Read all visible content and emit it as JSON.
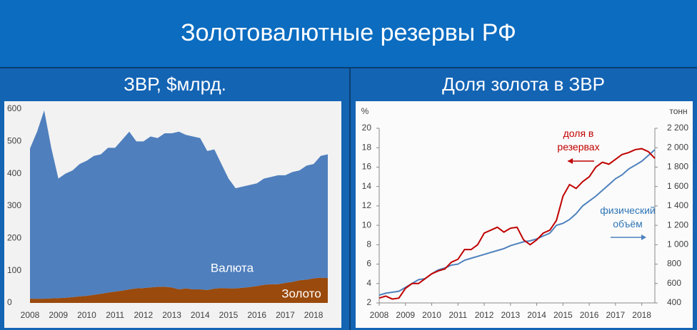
{
  "title": "Золотовалютные резервы РФ",
  "chart_data": [
    {
      "type": "area",
      "stacked": true,
      "title": "ЗВР, $млрд.",
      "x": [
        2008,
        2008.25,
        2008.5,
        2008.75,
        2009,
        2009.25,
        2009.5,
        2009.75,
        2010,
        2010.25,
        2010.5,
        2010.75,
        2011,
        2011.25,
        2011.5,
        2011.75,
        2012,
        2012.25,
        2012.5,
        2012.75,
        2013,
        2013.25,
        2013.5,
        2013.75,
        2014,
        2014.25,
        2014.5,
        2014.75,
        2015,
        2015.25,
        2015.5,
        2015.75,
        2016,
        2016.25,
        2016.5,
        2016.75,
        2017,
        2017.25,
        2017.5,
        2017.75,
        2018,
        2018.25,
        2018.5
      ],
      "series": [
        {
          "name": "Золото",
          "color": "#9a4a0c",
          "values": [
            13,
            13,
            13,
            14,
            15,
            16,
            18,
            20,
            22,
            25,
            28,
            32,
            35,
            38,
            42,
            45,
            46,
            48,
            50,
            50,
            48,
            42,
            45,
            42,
            42,
            40,
            44,
            46,
            45,
            45,
            47,
            49,
            52,
            56,
            58,
            58,
            62,
            65,
            70,
            72,
            76,
            78,
            77
          ]
        },
        {
          "name": "Валюта",
          "color": "#4f7fbd",
          "values": [
            465,
            517,
            583,
            466,
            370,
            384,
            392,
            410,
            418,
            430,
            432,
            448,
            445,
            467,
            488,
            455,
            454,
            467,
            460,
            475,
            477,
            488,
            475,
            473,
            468,
            430,
            431,
            384,
            340,
            310,
            313,
            316,
            318,
            329,
            332,
            337,
            333,
            340,
            340,
            353,
            354,
            377,
            383
          ]
        }
      ],
      "xlim": [
        2008,
        2018.5
      ],
      "xticks": [
        2008,
        2009,
        2010,
        2011,
        2012,
        2013,
        2014,
        2015,
        2016,
        2017,
        2018
      ],
      "ylim": [
        0,
        600
      ],
      "yticks": [
        0,
        100,
        200,
        300,
        400,
        500,
        600
      ]
    },
    {
      "type": "line",
      "title": "Доля золота в ЗВР",
      "ylabel": "%",
      "y2label": "тонн",
      "x": [
        2008,
        2008.25,
        2008.5,
        2008.75,
        2009,
        2009.25,
        2009.5,
        2009.75,
        2010,
        2010.25,
        2010.5,
        2010.75,
        2011,
        2011.25,
        2011.5,
        2011.75,
        2012,
        2012.25,
        2012.5,
        2012.75,
        2013,
        2013.25,
        2013.5,
        2013.75,
        2014,
        2014.25,
        2014.5,
        2014.75,
        2015,
        2015.25,
        2015.5,
        2015.75,
        2016,
        2016.25,
        2016.5,
        2016.75,
        2017,
        2017.25,
        2017.5,
        2017.75,
        2018,
        2018.25,
        2018.5
      ],
      "series": [
        {
          "name": "доля в резервах",
          "color": "#c00000",
          "values": [
            2.5,
            2.7,
            2.4,
            2.5,
            3.5,
            4.0,
            4.0,
            4.5,
            5.0,
            5.3,
            5.5,
            6.2,
            6.5,
            7.5,
            7.5,
            8.0,
            9.2,
            9.5,
            9.8,
            9.3,
            9.7,
            9.8,
            8.5,
            8.0,
            8.5,
            9.2,
            9.5,
            10.5,
            13.0,
            14.2,
            13.8,
            14.5,
            15.0,
            16.0,
            16.5,
            16.3,
            16.8,
            17.3,
            17.5,
            17.8,
            17.9,
            17.6,
            16.9
          ]
        },
        {
          "name": "физический объём",
          "color": "#4f81bd",
          "axis": "y2",
          "values": [
            480,
            500,
            510,
            520,
            560,
            600,
            640,
            650,
            700,
            740,
            760,
            790,
            800,
            840,
            860,
            880,
            900,
            920,
            940,
            960,
            990,
            1010,
            1030,
            1040,
            1060,
            1090,
            1120,
            1200,
            1220,
            1260,
            1320,
            1400,
            1450,
            1500,
            1560,
            1620,
            1680,
            1720,
            1780,
            1820,
            1860,
            1920,
            1980
          ]
        }
      ],
      "xlim": [
        2008,
        2018.5
      ],
      "xticks": [
        2008,
        2009,
        2010,
        2011,
        2012,
        2013,
        2014,
        2015,
        2016,
        2017,
        2018
      ],
      "ylim": [
        2,
        20
      ],
      "yticks": [
        2,
        4,
        6,
        8,
        10,
        12,
        14,
        16,
        18,
        20
      ],
      "y2lim": [
        400,
        2200
      ],
      "y2ticks": [
        400,
        600,
        800,
        {
          "value": 1000,
          "label": "1 000"
        },
        {
          "value": 1200,
          "label": "1 200"
        },
        {
          "value": 1400,
          "label": "1 400"
        },
        {
          "value": 1600,
          "label": "1 600"
        },
        {
          "value": 1800,
          "label": "1 800"
        },
        {
          "value": 2000,
          "label": "2 000"
        },
        {
          "value": 2200,
          "label": "2 200"
        }
      ]
    }
  ]
}
